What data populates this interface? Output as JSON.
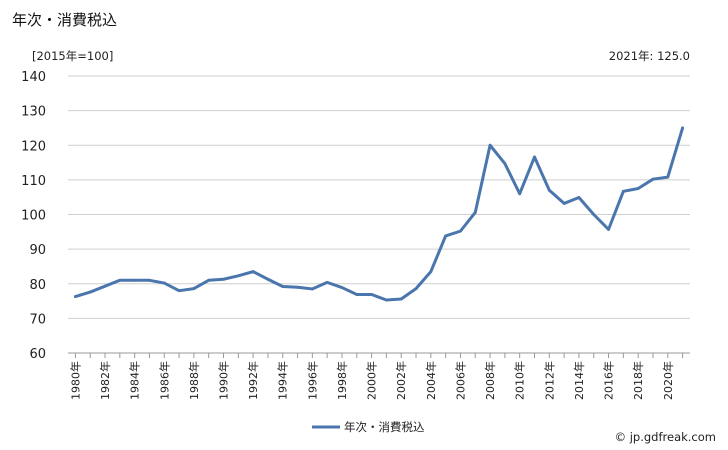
{
  "chart_data": {
    "type": "line",
    "title": "年次・消費税込",
    "unit_label": "[2015年=100]",
    "latest_note": "2021年: 125.0",
    "source": "© jp.gdfreak.com",
    "ylim": [
      60,
      140
    ],
    "y_ticks": [
      60,
      70,
      80,
      90,
      100,
      110,
      120,
      130,
      140
    ],
    "grid": true,
    "legend_position": "bottom",
    "x_tick_labels": [
      "1980年",
      "1982年",
      "1984年",
      "1986年",
      "1988年",
      "1990年",
      "1992年",
      "1994年",
      "1996年",
      "1998年",
      "2000年",
      "2002年",
      "2004年",
      "2006年",
      "2008年",
      "2010年",
      "2012年",
      "2014年",
      "2016年",
      "2018年",
      "2020年"
    ],
    "x": [
      1980,
      1981,
      1982,
      1983,
      1984,
      1985,
      1986,
      1987,
      1988,
      1989,
      1990,
      1991,
      1992,
      1993,
      1994,
      1995,
      1996,
      1997,
      1998,
      1999,
      2000,
      2001,
      2002,
      2003,
      2004,
      2005,
      2006,
      2007,
      2008,
      2009,
      2010,
      2011,
      2012,
      2013,
      2014,
      2015,
      2016,
      2017,
      2018,
      2019,
      2020,
      2021
    ],
    "series": [
      {
        "name": "年次・消費税込",
        "color": "#4a76ad",
        "values": [
          76.3,
          77.6,
          79.3,
          81.0,
          81.0,
          81.0,
          80.2,
          78.0,
          78.6,
          81.0,
          81.3,
          82.3,
          83.5,
          81.3,
          79.2,
          79.0,
          78.5,
          80.4,
          78.9,
          76.9,
          76.9,
          75.3,
          75.6,
          78.6,
          83.5,
          93.8,
          95.2,
          100.6,
          120.0,
          114.7,
          106.0,
          116.6,
          107.0,
          103.2,
          104.9,
          100.0,
          95.7,
          106.7,
          107.5,
          110.2,
          110.8,
          125.0
        ]
      }
    ]
  }
}
